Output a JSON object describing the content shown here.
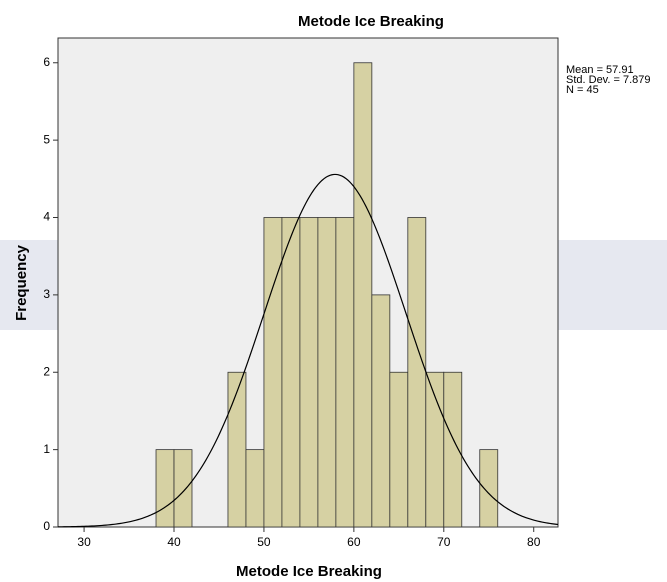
{
  "chart_data": {
    "type": "histogram",
    "title": "Metode Ice Breaking",
    "x_label": "Metode Ice Breaking",
    "y_label": "Frequency",
    "bins": [
      38,
      40,
      42,
      44,
      46,
      48,
      50,
      52,
      54,
      56,
      58,
      60,
      62,
      64,
      66,
      68,
      70,
      72,
      74,
      76
    ],
    "values": [
      1,
      1,
      0,
      0,
      2,
      1,
      4,
      4,
      4,
      4,
      4,
      6,
      3,
      2,
      4,
      2,
      2,
      0,
      1
    ],
    "color": "#d6d1a3",
    "curve_color": "#000000",
    "xlim": [
      27.1,
      82.7
    ],
    "xticks": [
      30,
      40,
      50,
      60,
      70,
      80
    ],
    "ylim": [
      0,
      6.32
    ],
    "yticks": [
      0,
      1,
      2,
      3,
      4,
      5,
      6
    ],
    "grid": false,
    "stats": [
      {
        "value": 57.91,
        "label": "Mean = 57.91"
      },
      {
        "value": 7.879,
        "label": "Std. Dev. = 7.879"
      },
      {
        "value": 45,
        "label": "N = 45"
      }
    ]
  }
}
